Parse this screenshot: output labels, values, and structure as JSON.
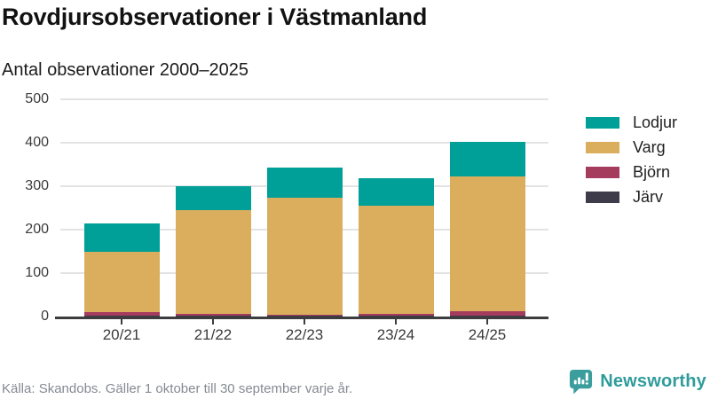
{
  "header": {
    "title": "Rovdjursobservationer i Västmanland",
    "subtitle": "Antal observationer 2000–2025"
  },
  "chart_data": {
    "type": "bar",
    "stacked": true,
    "title": "Rovdjursobservationer i Västmanland",
    "subtitle": "Antal observationer 2000–2025",
    "categories": [
      "20/21",
      "21/22",
      "22/23",
      "23/24",
      "24/25"
    ],
    "series": [
      {
        "name": "Järv",
        "color": "#3e3c4b",
        "values": [
          2,
          2,
          2,
          2,
          2
        ]
      },
      {
        "name": "Björn",
        "color": "#a53c5e",
        "values": [
          8,
          5,
          2,
          5,
          10
        ]
      },
      {
        "name": "Varg",
        "color": "#dbae5e",
        "values": [
          140,
          238,
          270,
          248,
          310
        ]
      },
      {
        "name": "Lodjur",
        "color": "#00a098",
        "values": [
          65,
          55,
          68,
          64,
          80
        ]
      }
    ],
    "totals": [
      215,
      300,
      342,
      319,
      402
    ],
    "legend_order": [
      "Lodjur",
      "Varg",
      "Björn",
      "Järv"
    ],
    "legend_position": "right",
    "xlabel": "",
    "ylabel": "",
    "ylim": [
      0,
      500
    ],
    "yticks": [
      0,
      100,
      200,
      300,
      400,
      500
    ],
    "grid": true,
    "grid_color": "#e3e3e3",
    "axis_color": "#3d3c3e"
  },
  "footer": {
    "source_note": "Källa: Skandobs. Gäller 1 oktober till 30 september varje år."
  },
  "branding": {
    "logo_text": "Newsworthy",
    "logo_color": "#2f9c9b",
    "logo_icon": "bar-chart-speech-bubble-icon"
  }
}
